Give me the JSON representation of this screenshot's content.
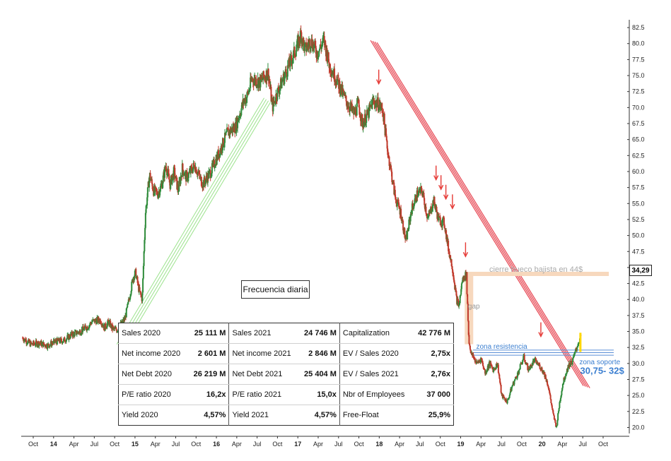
{
  "chart_data": {
    "type": "candlestick",
    "title": "",
    "xlabel": "",
    "ylabel": "",
    "ylim": [
      19.5,
      83.5
    ],
    "y_ticks": [
      "82.5",
      "80.0",
      "77.5",
      "75.0",
      "72.5",
      "70.0",
      "67.5",
      "65.0",
      "62.5",
      "60.0",
      "57.5",
      "55.0",
      "52.5",
      "50.0",
      "47.5",
      "45.0",
      "42.5",
      "40.0",
      "37.5",
      "35.0",
      "32.5",
      "30.0",
      "27.5",
      "25.0",
      "22.5",
      "20.0"
    ],
    "x_ticks": [
      {
        "label": "Oct",
        "year": false
      },
      {
        "label": "14",
        "year": true
      },
      {
        "label": "Apr",
        "year": false
      },
      {
        "label": "Jul",
        "year": false
      },
      {
        "label": "Oct",
        "year": false
      },
      {
        "label": "15",
        "year": true
      },
      {
        "label": "Apr",
        "year": false
      },
      {
        "label": "Jul",
        "year": false
      },
      {
        "label": "Oct",
        "year": false
      },
      {
        "label": "16",
        "year": true
      },
      {
        "label": "Apr",
        "year": false
      },
      {
        "label": "Jul",
        "year": false
      },
      {
        "label": "Oct",
        "year": false
      },
      {
        "label": "17",
        "year": true
      },
      {
        "label": "Apr",
        "year": false
      },
      {
        "label": "Jul",
        "year": false
      },
      {
        "label": "Oct",
        "year": false
      },
      {
        "label": "18",
        "year": true
      },
      {
        "label": "Apr",
        "year": false
      },
      {
        "label": "Jul",
        "year": false
      },
      {
        "label": "Oct",
        "year": false
      },
      {
        "label": "19",
        "year": true
      },
      {
        "label": "Apr",
        "year": false
      },
      {
        "label": "Jul",
        "year": false
      },
      {
        "label": "Oct",
        "year": false
      },
      {
        "label": "20",
        "year": true
      },
      {
        "label": "Apr",
        "year": false
      },
      {
        "label": "Jul",
        "year": false
      },
      {
        "label": "Oct",
        "year": false
      }
    ],
    "x_range": [
      2013.7,
      2020.92
    ],
    "price_path": [
      [
        2013.7,
        34.0
      ],
      [
        2013.8,
        33.0
      ],
      [
        2013.9,
        33.2
      ],
      [
        2014.0,
        32.8
      ],
      [
        2014.1,
        33.4
      ],
      [
        2014.2,
        33.6
      ],
      [
        2014.3,
        34.5
      ],
      [
        2014.4,
        35.0
      ],
      [
        2014.5,
        35.8
      ],
      [
        2014.55,
        36.6
      ],
      [
        2014.65,
        36.8
      ],
      [
        2014.7,
        35.6
      ],
      [
        2014.75,
        36.5
      ],
      [
        2014.8,
        35.4
      ],
      [
        2014.85,
        35.2
      ],
      [
        2014.95,
        37.0
      ],
      [
        2015.0,
        40.0
      ],
      [
        2015.05,
        43.5
      ],
      [
        2015.08,
        44.2
      ],
      [
        2015.12,
        41.5
      ],
      [
        2015.16,
        40.0
      ],
      [
        2015.2,
        53.5
      ],
      [
        2015.25,
        59.5
      ],
      [
        2015.3,
        57.0
      ],
      [
        2015.35,
        56.5
      ],
      [
        2015.4,
        58.0
      ],
      [
        2015.45,
        61.0
      ],
      [
        2015.5,
        58.0
      ],
      [
        2015.55,
        60.0
      ],
      [
        2015.6,
        57.0
      ],
      [
        2015.65,
        60.5
      ],
      [
        2015.7,
        59.0
      ],
      [
        2015.8,
        61.0
      ],
      [
        2015.9,
        58.0
      ],
      [
        2016.0,
        60.0
      ],
      [
        2016.1,
        63.0
      ],
      [
        2016.2,
        66.0
      ],
      [
        2016.3,
        67.0
      ],
      [
        2016.4,
        71.0
      ],
      [
        2016.45,
        72.0
      ],
      [
        2016.5,
        74.5
      ],
      [
        2016.6,
        74.0
      ],
      [
        2016.7,
        75.5
      ],
      [
        2016.75,
        70.0
      ],
      [
        2016.8,
        72.0
      ],
      [
        2016.9,
        75.0
      ],
      [
        2017.0,
        78.0
      ],
      [
        2017.05,
        79.5
      ],
      [
        2017.1,
        81.5
      ],
      [
        2017.15,
        79.0
      ],
      [
        2017.22,
        80.5
      ],
      [
        2017.3,
        78.5
      ],
      [
        2017.38,
        80.5
      ],
      [
        2017.45,
        76.5
      ],
      [
        2017.55,
        74.0
      ],
      [
        2017.65,
        71.0
      ],
      [
        2017.75,
        69.0
      ],
      [
        2017.8,
        70.5
      ],
      [
        2017.85,
        67.5
      ],
      [
        2017.92,
        69.0
      ],
      [
        2017.98,
        71.0
      ],
      [
        2018.05,
        70.5
      ],
      [
        2018.1,
        69.5
      ],
      [
        2018.15,
        64.0
      ],
      [
        2018.2,
        60.0
      ],
      [
        2018.25,
        56.0
      ],
      [
        2018.32,
        53.5
      ],
      [
        2018.38,
        49.0
      ],
      [
        2018.45,
        54.0
      ],
      [
        2018.52,
        56.5
      ],
      [
        2018.58,
        57.0
      ],
      [
        2018.65,
        52.5
      ],
      [
        2018.72,
        55.5
      ],
      [
        2018.78,
        52.5
      ],
      [
        2018.85,
        52.0
      ],
      [
        2018.9,
        48.0
      ],
      [
        2018.95,
        45.0
      ],
      [
        2019.0,
        40.0
      ],
      [
        2019.03,
        39.0
      ],
      [
        2019.07,
        43.0
      ],
      [
        2019.12,
        44.0
      ],
      [
        2019.15,
        33.5
      ],
      [
        2019.18,
        31.5
      ],
      [
        2019.25,
        30.0
      ],
      [
        2019.3,
        30.8
      ],
      [
        2019.35,
        28.5
      ],
      [
        2019.4,
        30.0
      ],
      [
        2019.45,
        29.0
      ],
      [
        2019.5,
        30.0
      ],
      [
        2019.55,
        25.0
      ],
      [
        2019.62,
        24.0
      ],
      [
        2019.68,
        26.5
      ],
      [
        2019.75,
        28.5
      ],
      [
        2019.82,
        31.0
      ],
      [
        2019.88,
        29.0
      ],
      [
        2019.95,
        30.5
      ],
      [
        2020.02,
        29.5
      ],
      [
        2020.07,
        28.5
      ],
      [
        2020.12,
        26.5
      ],
      [
        2020.18,
        22.0
      ],
      [
        2020.22,
        20.0
      ],
      [
        2020.26,
        24.0
      ],
      [
        2020.3,
        27.0
      ],
      [
        2020.36,
        29.5
      ],
      [
        2020.42,
        30.5
      ],
      [
        2020.48,
        33.0
      ],
      [
        2020.52,
        34.3
      ]
    ],
    "last_price": "34,29",
    "resistance_lines": [
      {
        "name": "zona resistencia",
        "y": [
          32.1,
          31.7,
          31.3
        ]
      }
    ],
    "support_zone": {
      "label": "zona soporte",
      "range": "30,75- 32$"
    },
    "gap": {
      "label": "gap",
      "from": 44.0,
      "to": 33.0
    },
    "gap_fill_target": {
      "label": "cierre hueco bajista en 44$",
      "y": 44.0
    },
    "red_arrows_at": [
      2018.05,
      2018.75,
      2018.81,
      2018.87,
      2018.95,
      2019.11,
      2020.03
    ],
    "colors": {
      "up": "#2e8b3a",
      "down": "#c0392b",
      "uptrend": "#9be38c",
      "downtrend": "#e8505b",
      "gap": "#f7d8bd",
      "support": "#5b8fd6",
      "support_text": "#3a7ed0",
      "yellow": "#ffd700"
    }
  },
  "labels": {
    "freq": "Frecuencia diaria",
    "last_price": "34,29",
    "gap": "gap",
    "cierre": "cierre hueco bajista en 44$",
    "resistencia": "zona resistencia",
    "soporte": "zona soporte",
    "soporte_range": "30,75- 32$"
  },
  "fundamentals": [
    [
      {
        "k": "Sales 2020",
        "v": "25 111 M"
      },
      {
        "k": "Sales 2021",
        "v": "24 746 M"
      },
      {
        "k": "Capitalization",
        "v": "42 776 M"
      }
    ],
    [
      {
        "k": "Net income 2020",
        "v": "2 601 M"
      },
      {
        "k": "Net income 2021",
        "v": "2 846 M"
      },
      {
        "k": "EV / Sales 2020",
        "v": "2,75x"
      }
    ],
    [
      {
        "k": "Net Debt 2020",
        "v": "26 219 M"
      },
      {
        "k": "Net Debt 2021",
        "v": "25 404 M"
      },
      {
        "k": "EV / Sales 2021",
        "v": "2,76x"
      }
    ],
    [
      {
        "k": "P/E ratio 2020",
        "v": "16,2x"
      },
      {
        "k": "P/E ratio 2021",
        "v": "15,0x"
      },
      {
        "k": "Nbr of Employees",
        "v": "37 000"
      }
    ],
    [
      {
        "k": "Yield 2020",
        "v": "4,57%"
      },
      {
        "k": "Yield 2021",
        "v": "4,57%"
      },
      {
        "k": "Free-Float",
        "v": "25,9%"
      }
    ]
  ]
}
